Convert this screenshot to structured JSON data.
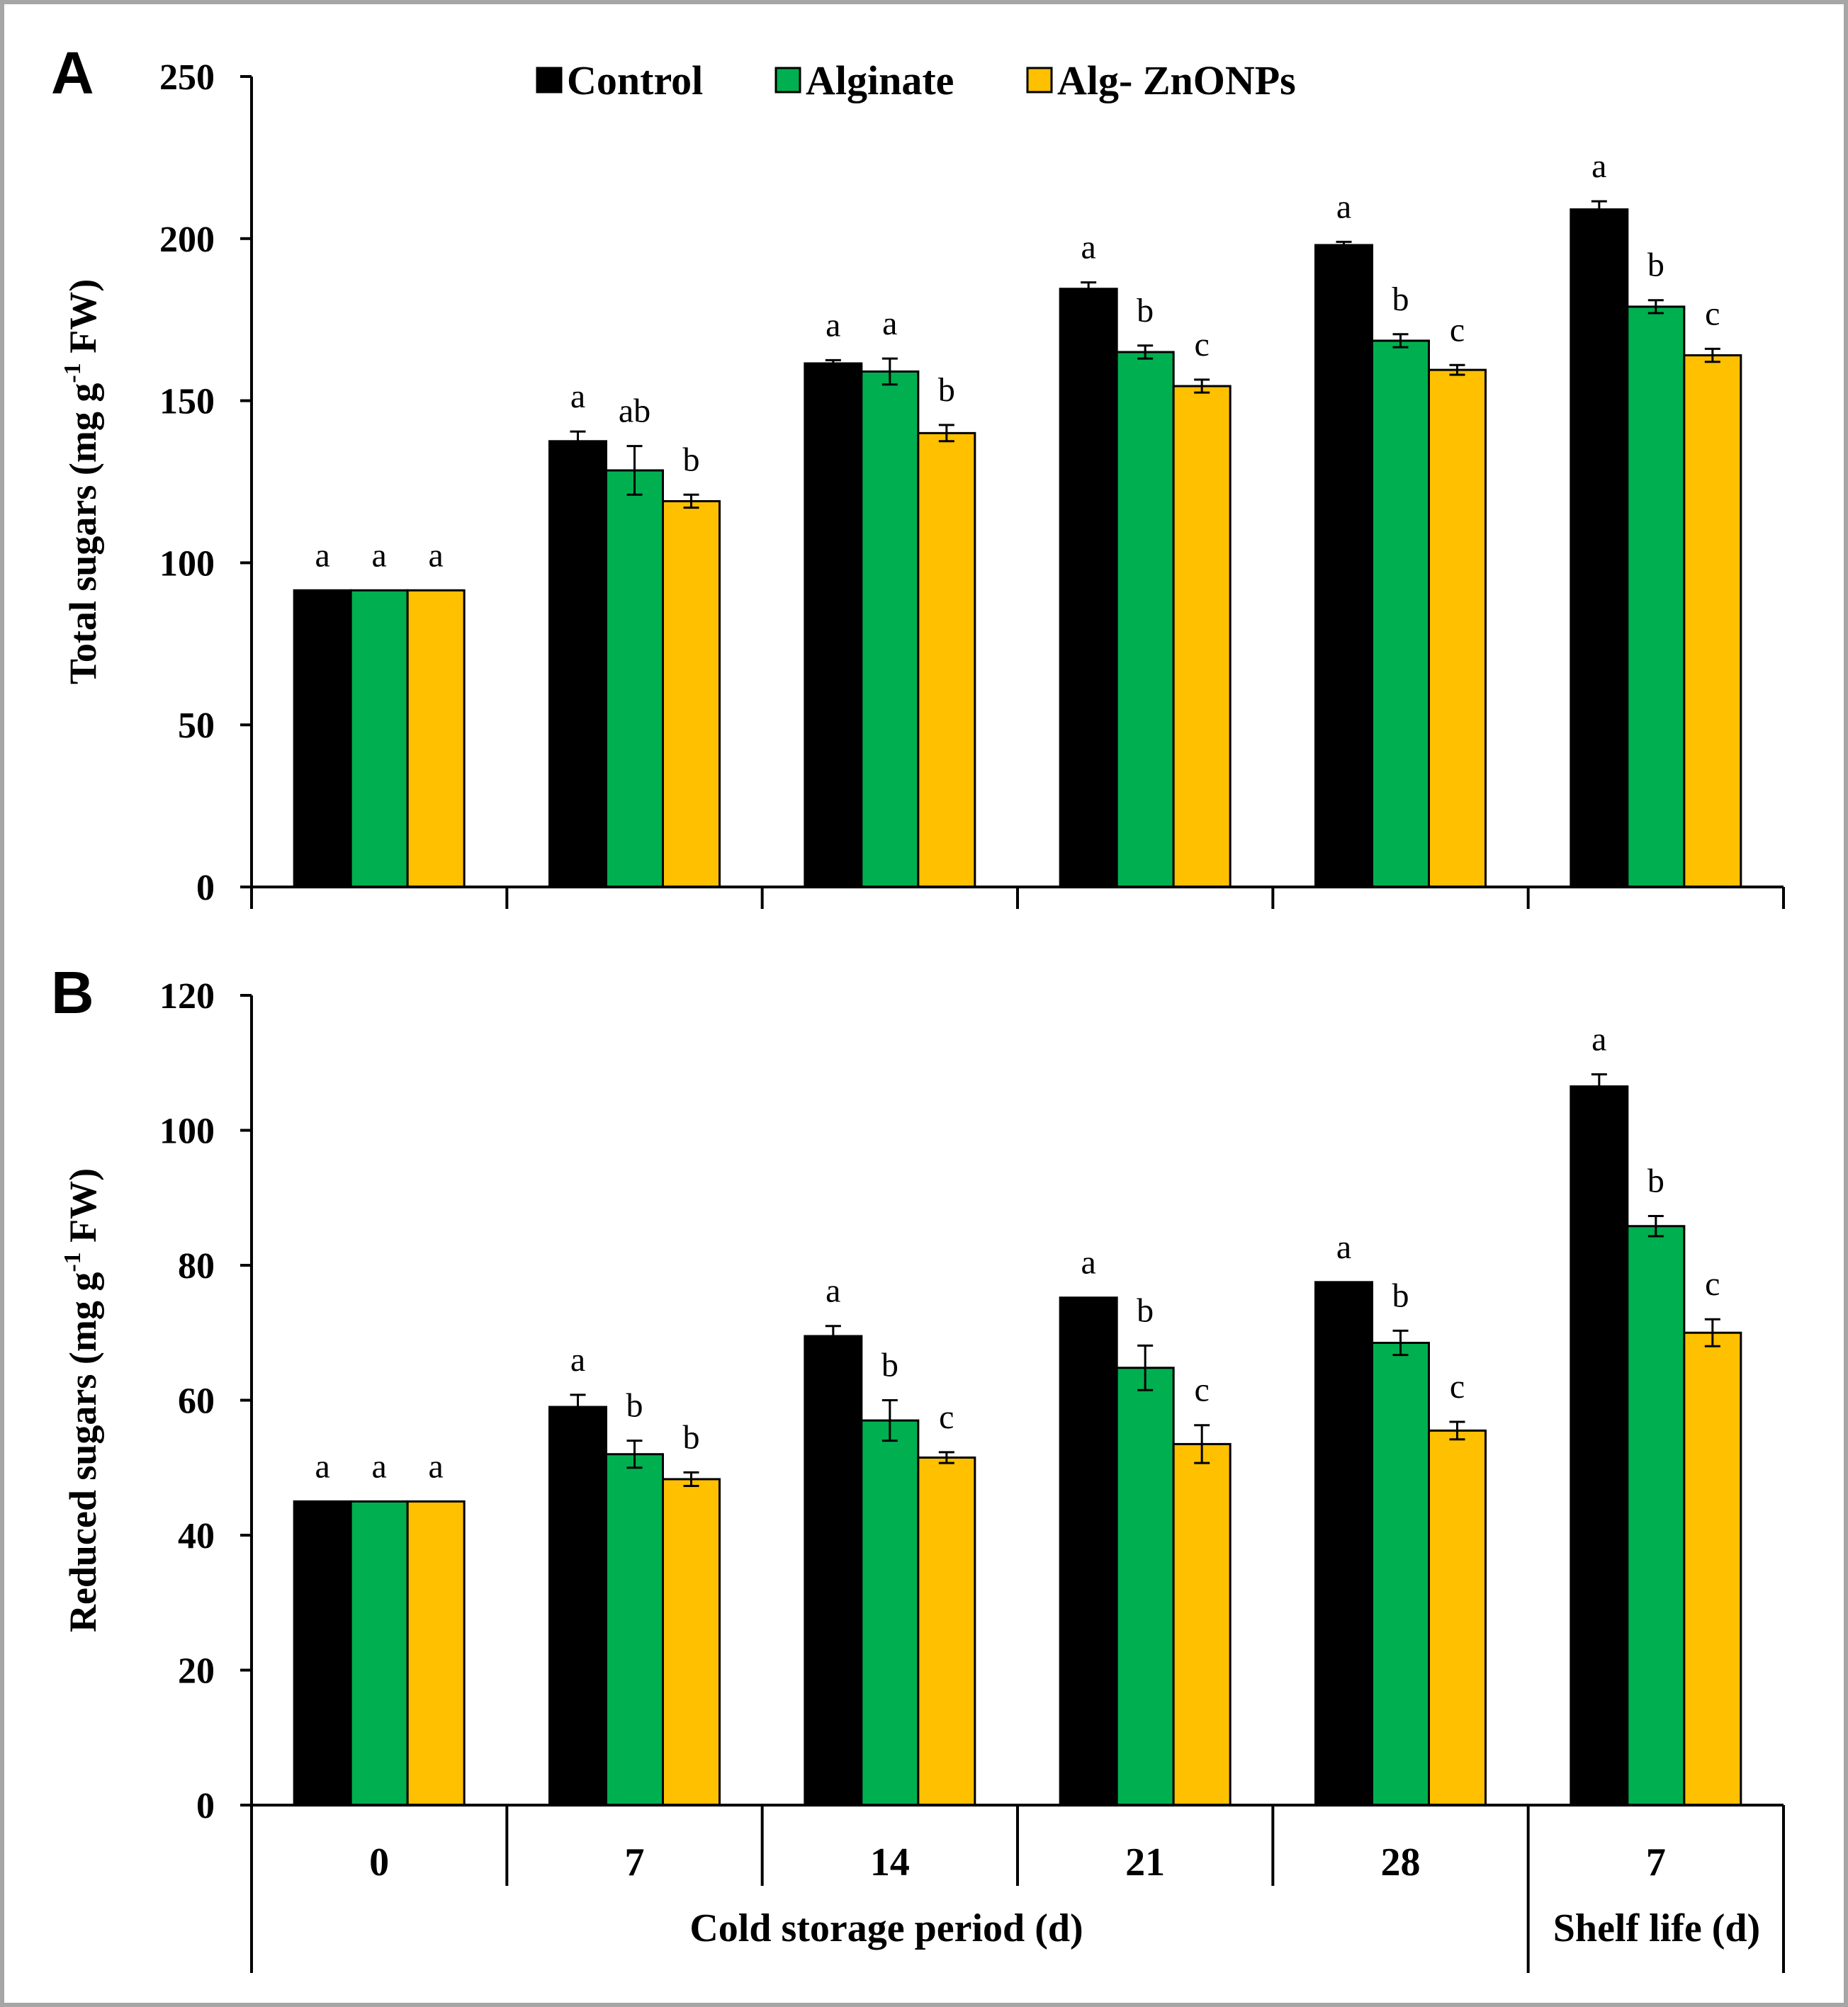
{
  "colors": {
    "control": "#000000",
    "alginate": "#00b050",
    "alg_znonps": "#ffc000",
    "frame": "#a6a6a6"
  },
  "legend": [
    "Control",
    "Alginate",
    "Alg- ZnONPs"
  ],
  "x_axis": {
    "categories": [
      "0",
      "7",
      "14",
      "21",
      "28",
      "7"
    ],
    "group_labels": [
      "Cold storage period (d)",
      "Shelf life (d)"
    ]
  },
  "chart_data": [
    {
      "type": "bar",
      "panel": "A",
      "ylabel_main": "Total sugars (mg g",
      "ylabel_sup": "-1",
      "ylabel_tail": " FW)",
      "ylim": [
        0,
        250
      ],
      "yticks": [
        0,
        50,
        100,
        150,
        200,
        250
      ],
      "categories": [
        "0",
        "7",
        "14",
        "21",
        "28",
        "7"
      ],
      "series": [
        {
          "name": "Control",
          "values": [
            91.5,
            137.5,
            161.5,
            184.5,
            198,
            209
          ],
          "errors": [
            0,
            3,
            1,
            2,
            1,
            2.5
          ],
          "letters": [
            "a",
            "a",
            "a",
            "a",
            "a",
            "a"
          ]
        },
        {
          "name": "Alginate",
          "values": [
            91.5,
            128.5,
            159,
            165,
            168.5,
            179
          ],
          "errors": [
            0,
            7.5,
            4,
            2,
            2,
            2
          ],
          "letters": [
            "a",
            "ab",
            "a",
            "b",
            "b",
            "b"
          ]
        },
        {
          "name": "Alg- ZnONPs",
          "values": [
            91.5,
            119,
            140,
            154.5,
            159.5,
            164
          ],
          "errors": [
            0,
            2,
            2.5,
            2,
            1.5,
            2
          ],
          "letters": [
            "a",
            "b",
            "b",
            "c",
            "c",
            "c"
          ]
        }
      ]
    },
    {
      "type": "bar",
      "panel": "B",
      "ylabel_main": "Reduced sugars (mg g",
      "ylabel_sup": "-1",
      "ylabel_tail": " FW)",
      "ylim": [
        0,
        120
      ],
      "yticks": [
        0,
        20,
        40,
        60,
        80,
        100,
        120
      ],
      "categories": [
        "0",
        "7",
        "14",
        "21",
        "28",
        "7"
      ],
      "series": [
        {
          "name": "Control",
          "values": [
            45,
            59,
            69.5,
            75.2,
            77.5,
            106.5
          ],
          "errors": [
            0,
            1.8,
            1.5,
            0,
            0,
            1.8
          ],
          "letters": [
            "a",
            "a",
            "a",
            "a",
            "a",
            "a"
          ]
        },
        {
          "name": "Alginate",
          "values": [
            45,
            52,
            57,
            64.8,
            68.5,
            85.8
          ],
          "errors": [
            0,
            2,
            3,
            3.3,
            1.8,
            1.5
          ],
          "letters": [
            "a",
            "b",
            "b",
            "b",
            "b",
            "b"
          ]
        },
        {
          "name": "Alg- ZnONPs",
          "values": [
            45,
            48.3,
            51.5,
            53.5,
            55.5,
            70
          ],
          "errors": [
            0,
            1,
            0.8,
            2.8,
            1.3,
            2
          ],
          "letters": [
            "a",
            "b",
            "c",
            "c",
            "c",
            "c"
          ]
        }
      ]
    }
  ]
}
